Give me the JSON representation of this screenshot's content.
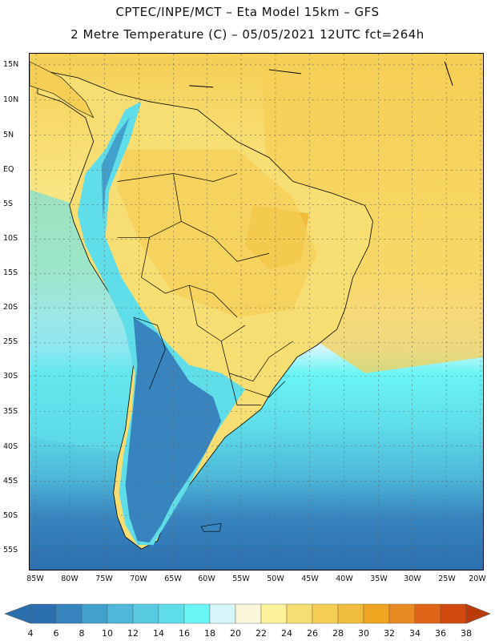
{
  "header": {
    "title_line1": "CPTEC/INPE/MCT  –  Eta Model 15km – GFS",
    "title_line2": "2 Metre Temperature (C) – 05/05/2021 12UTC fct=264h"
  },
  "map": {
    "lat_labels": [
      "15N",
      "10N",
      "5N",
      "EQ",
      "5S",
      "10S",
      "15S",
      "20S",
      "25S",
      "30S",
      "35S",
      "40S",
      "45S",
      "50S",
      "55S"
    ],
    "lon_labels": [
      "85W",
      "80W",
      "75W",
      "70W",
      "65W",
      "60W",
      "55W",
      "50W",
      "45W",
      "40W",
      "35W",
      "30W",
      "25W",
      "20W"
    ]
  },
  "colorbar": {
    "labels": [
      "4",
      "6",
      "8",
      "10",
      "12",
      "14",
      "16",
      "18",
      "20",
      "22",
      "24",
      "26",
      "28",
      "30",
      "32",
      "34",
      "36",
      "38"
    ],
    "colors": [
      "#2c6fae",
      "#3784bf",
      "#42a0cc",
      "#4db8d9",
      "#57c9e0",
      "#5fdde9",
      "#6af5f5",
      "#d6f6fa",
      "#fbf5dc",
      "#fbf29a",
      "#f7de73",
      "#f5cf55",
      "#efbc3c",
      "#eea51f",
      "#e88922",
      "#df6518",
      "#cf4a0c",
      "#ba3a0a"
    ]
  }
}
